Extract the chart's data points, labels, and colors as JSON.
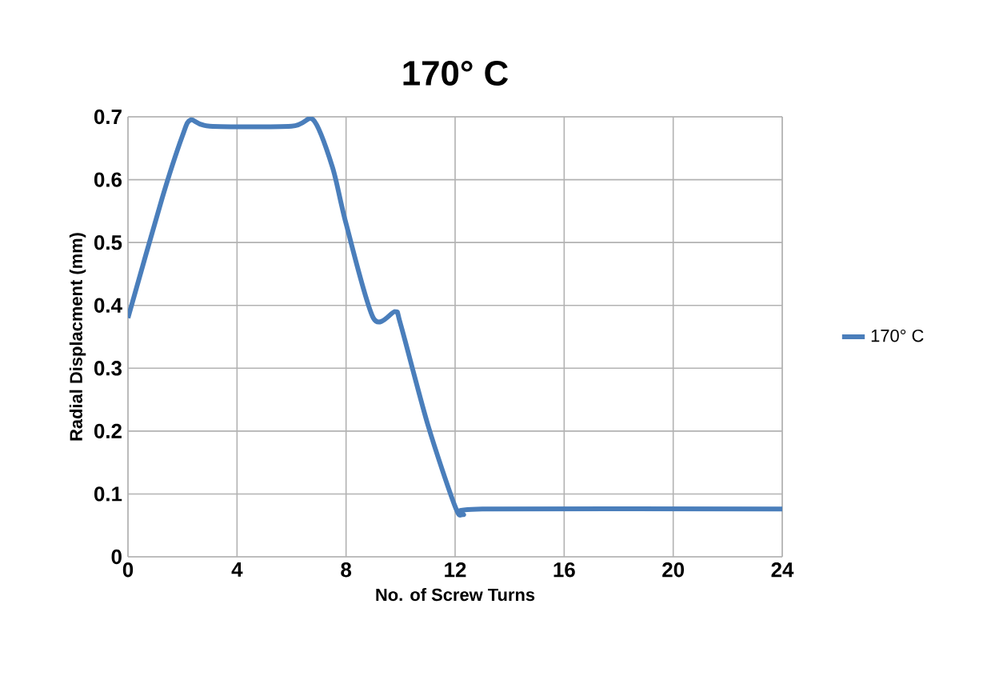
{
  "chart_data": {
    "type": "line",
    "title": "170° C",
    "xlabel": "No. of Screw Turns",
    "ylabel": "Radial Displacment (mm)",
    "x": [
      0,
      1.25,
      2,
      2.3,
      3,
      6,
      6.8,
      7.5,
      8,
      9,
      9.8,
      10,
      11,
      12,
      12.3,
      13,
      24
    ],
    "series": [
      {
        "name": "170° C",
        "color": "#4a7ebb",
        "values": [
          0.38,
          0.57,
          0.67,
          0.695,
          0.685,
          0.685,
          0.695,
          0.62,
          0.53,
          0.38,
          0.39,
          0.37,
          0.21,
          0.08,
          0.067,
          0.076,
          0.076
        ]
      }
    ],
    "xlim": [
      0,
      24
    ],
    "ylim": [
      0,
      0.7
    ],
    "xticks": [
      0,
      4,
      8,
      12,
      16,
      20,
      24
    ],
    "yticks": [
      0,
      0.1,
      0.2,
      0.3,
      0.4,
      0.5,
      0.6,
      0.7
    ],
    "grid": true,
    "legend": "right"
  }
}
